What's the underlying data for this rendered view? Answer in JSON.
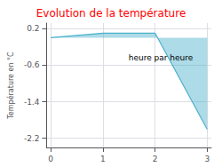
{
  "chart_data": {
    "type": "line",
    "title": "Evolution de la température",
    "ylabel": "Température en °C",
    "xlabel": "heure par heure",
    "x": [
      0,
      1,
      2,
      3
    ],
    "values": [
      0.0,
      0.1,
      0.1,
      -2.0
    ],
    "color": "#4ab0cc",
    "xlim": [
      -0.08,
      3.08
    ],
    "ylim": [
      -2.4,
      0.32
    ],
    "xticks": [
      0,
      1,
      2,
      3
    ],
    "yticks": [
      0.2,
      -0.6,
      -1.4,
      -2.2
    ],
    "grid": true
  }
}
